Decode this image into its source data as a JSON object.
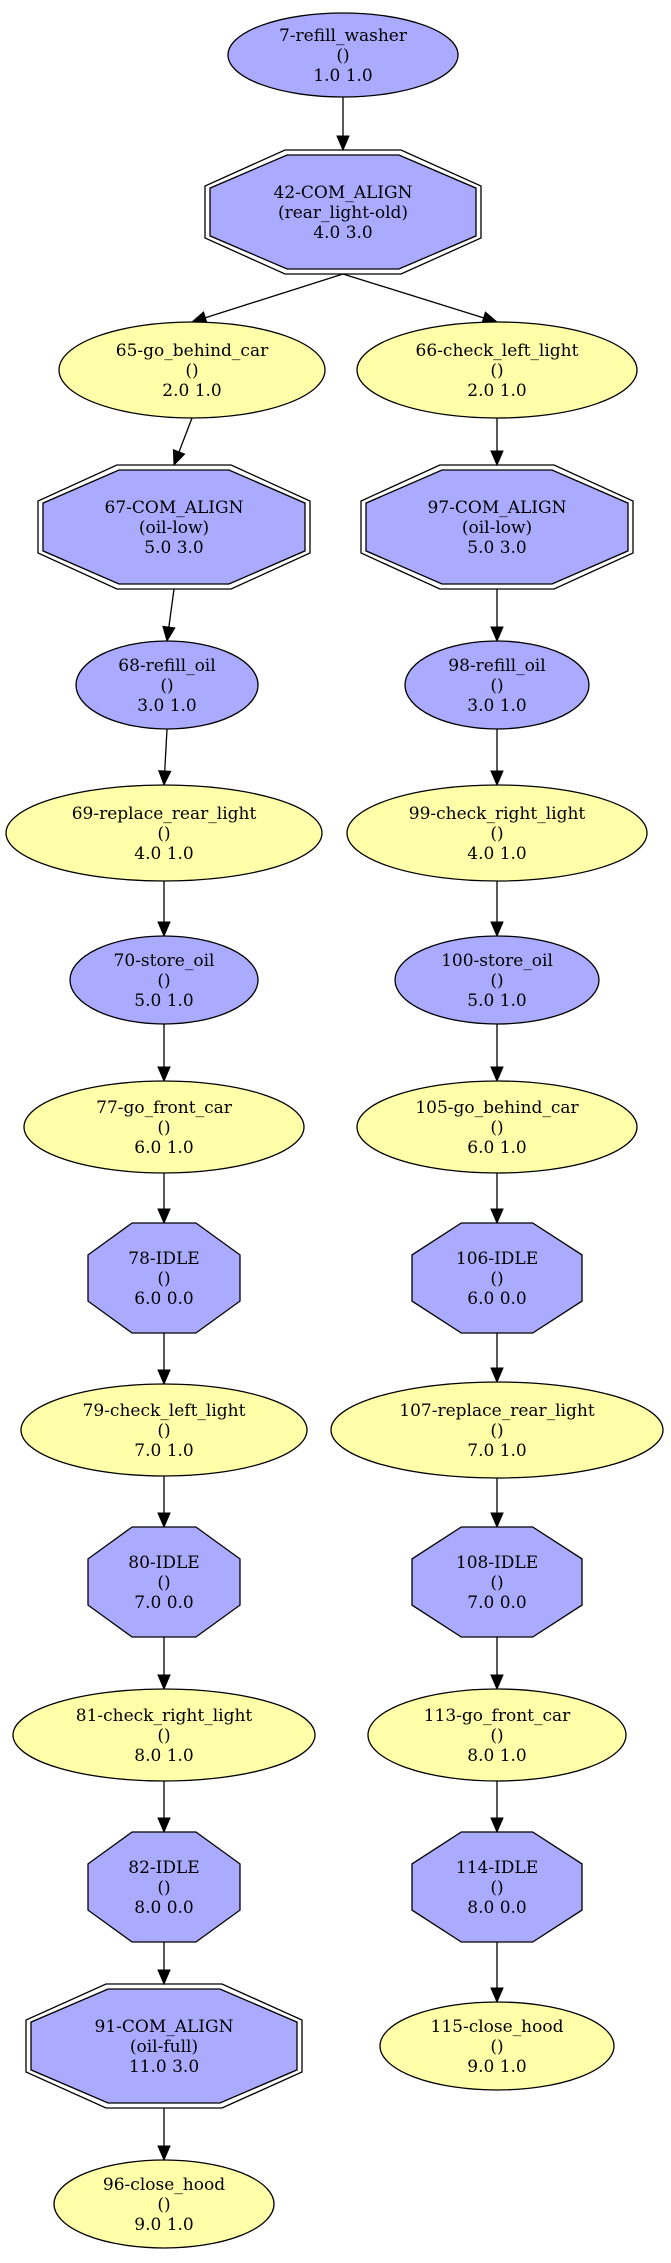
{
  "colors": {
    "blue_fill": "#aaaaff",
    "yellow_fill": "#ffffaa",
    "stroke": "#000000",
    "background": "#ffffff"
  },
  "nodes": [
    {
      "id": "n7",
      "shape": "ellipse",
      "color": "blue",
      "lines": [
        "7-refill_washer",
        "()",
        "1.0 1.0"
      ]
    },
    {
      "id": "n42",
      "shape": "double-octagon",
      "color": "blue",
      "lines": [
        "42-COM_ALIGN",
        "(rear_light-old)",
        "4.0 3.0"
      ]
    },
    {
      "id": "n65",
      "shape": "ellipse",
      "color": "yellow",
      "lines": [
        "65-go_behind_car",
        "()",
        "2.0 1.0"
      ]
    },
    {
      "id": "n66",
      "shape": "ellipse",
      "color": "yellow",
      "lines": [
        "66-check_left_light",
        "()",
        "2.0 1.0"
      ]
    },
    {
      "id": "n67",
      "shape": "double-octagon",
      "color": "blue",
      "lines": [
        "67-COM_ALIGN",
        "(oil-low)",
        "5.0 3.0"
      ]
    },
    {
      "id": "n97",
      "shape": "double-octagon",
      "color": "blue",
      "lines": [
        "97-COM_ALIGN",
        "(oil-low)",
        "5.0 3.0"
      ]
    },
    {
      "id": "n68",
      "shape": "ellipse",
      "color": "blue",
      "lines": [
        "68-refill_oil",
        "()",
        "3.0 1.0"
      ]
    },
    {
      "id": "n98",
      "shape": "ellipse",
      "color": "blue",
      "lines": [
        "98-refill_oil",
        "()",
        "3.0 1.0"
      ]
    },
    {
      "id": "n69",
      "shape": "ellipse",
      "color": "yellow",
      "lines": [
        "69-replace_rear_light",
        "()",
        "4.0 1.0"
      ]
    },
    {
      "id": "n99",
      "shape": "ellipse",
      "color": "yellow",
      "lines": [
        "99-check_right_light",
        "()",
        "4.0 1.0"
      ]
    },
    {
      "id": "n70",
      "shape": "ellipse",
      "color": "blue",
      "lines": [
        "70-store_oil",
        "()",
        "5.0 1.0"
      ]
    },
    {
      "id": "n100",
      "shape": "ellipse",
      "color": "blue",
      "lines": [
        "100-store_oil",
        "()",
        "5.0 1.0"
      ]
    },
    {
      "id": "n77",
      "shape": "ellipse",
      "color": "yellow",
      "lines": [
        "77-go_front_car",
        "()",
        "6.0 1.0"
      ]
    },
    {
      "id": "n105",
      "shape": "ellipse",
      "color": "yellow",
      "lines": [
        "105-go_behind_car",
        "()",
        "6.0 1.0"
      ]
    },
    {
      "id": "n78",
      "shape": "octagon",
      "color": "blue",
      "lines": [
        "78-IDLE",
        "()",
        "6.0 0.0"
      ]
    },
    {
      "id": "n106",
      "shape": "octagon",
      "color": "blue",
      "lines": [
        "106-IDLE",
        "()",
        "6.0 0.0"
      ]
    },
    {
      "id": "n79",
      "shape": "ellipse",
      "color": "yellow",
      "lines": [
        "79-check_left_light",
        "()",
        "7.0 1.0"
      ]
    },
    {
      "id": "n107",
      "shape": "ellipse",
      "color": "yellow",
      "lines": [
        "107-replace_rear_light",
        "()",
        "7.0 1.0"
      ]
    },
    {
      "id": "n80",
      "shape": "octagon",
      "color": "blue",
      "lines": [
        "80-IDLE",
        "()",
        "7.0 0.0"
      ]
    },
    {
      "id": "n108",
      "shape": "octagon",
      "color": "blue",
      "lines": [
        "108-IDLE",
        "()",
        "7.0 0.0"
      ]
    },
    {
      "id": "n81",
      "shape": "ellipse",
      "color": "yellow",
      "lines": [
        "81-check_right_light",
        "()",
        "8.0 1.0"
      ]
    },
    {
      "id": "n113",
      "shape": "ellipse",
      "color": "yellow",
      "lines": [
        "113-go_front_car",
        "()",
        "8.0 1.0"
      ]
    },
    {
      "id": "n82",
      "shape": "octagon",
      "color": "blue",
      "lines": [
        "82-IDLE",
        "()",
        "8.0 0.0"
      ]
    },
    {
      "id": "n114",
      "shape": "octagon",
      "color": "blue",
      "lines": [
        "114-IDLE",
        "()",
        "8.0 0.0"
      ]
    },
    {
      "id": "n91",
      "shape": "double-octagon",
      "color": "blue",
      "lines": [
        "91-COM_ALIGN",
        "(oil-full)",
        "11.0 3.0"
      ]
    },
    {
      "id": "n115",
      "shape": "ellipse",
      "color": "yellow",
      "lines": [
        "115-close_hood",
        "()",
        "9.0 1.0"
      ]
    },
    {
      "id": "n96",
      "shape": "ellipse",
      "color": "yellow",
      "lines": [
        "96-close_hood",
        "()",
        "9.0 1.0"
      ]
    }
  ],
  "edges": [
    [
      "n7",
      "n42"
    ],
    [
      "n42",
      "n65"
    ],
    [
      "n42",
      "n66"
    ],
    [
      "n65",
      "n67"
    ],
    [
      "n66",
      "n97"
    ],
    [
      "n67",
      "n68"
    ],
    [
      "n97",
      "n98"
    ],
    [
      "n68",
      "n69"
    ],
    [
      "n98",
      "n99"
    ],
    [
      "n69",
      "n70"
    ],
    [
      "n99",
      "n100"
    ],
    [
      "n70",
      "n77"
    ],
    [
      "n100",
      "n105"
    ],
    [
      "n77",
      "n78"
    ],
    [
      "n105",
      "n106"
    ],
    [
      "n78",
      "n79"
    ],
    [
      "n106",
      "n107"
    ],
    [
      "n79",
      "n80"
    ],
    [
      "n107",
      "n108"
    ],
    [
      "n80",
      "n81"
    ],
    [
      "n108",
      "n113"
    ],
    [
      "n81",
      "n82"
    ],
    [
      "n113",
      "n114"
    ],
    [
      "n82",
      "n91"
    ],
    [
      "n114",
      "n115"
    ],
    [
      "n91",
      "n96"
    ]
  ]
}
